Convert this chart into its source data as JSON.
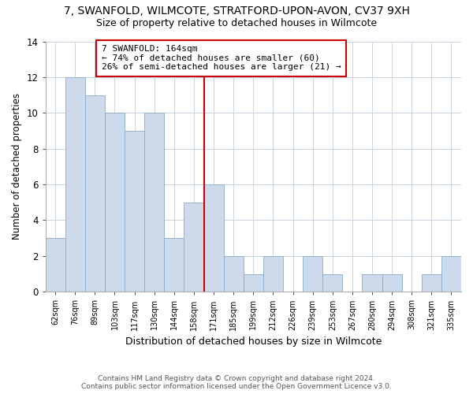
{
  "title": "7, SWANFOLD, WILMCOTE, STRATFORD-UPON-AVON, CV37 9XH",
  "subtitle": "Size of property relative to detached houses in Wilmcote",
  "xlabel": "Distribution of detached houses by size in Wilmcote",
  "ylabel": "Number of detached properties",
  "bar_labels": [
    "62sqm",
    "76sqm",
    "89sqm",
    "103sqm",
    "117sqm",
    "130sqm",
    "144sqm",
    "158sqm",
    "171sqm",
    "185sqm",
    "199sqm",
    "212sqm",
    "226sqm",
    "239sqm",
    "253sqm",
    "267sqm",
    "280sqm",
    "294sqm",
    "308sqm",
    "321sqm",
    "335sqm"
  ],
  "bar_values": [
    3,
    12,
    11,
    10,
    9,
    10,
    3,
    5,
    6,
    2,
    1,
    2,
    0,
    2,
    1,
    0,
    1,
    1,
    0,
    1,
    2
  ],
  "bar_color": "#ccdaeb",
  "bar_edge_color": "#8aaac8",
  "vline_x_index": 7.5,
  "vline_color": "#cc0000",
  "annotation_title": "7 SWANFOLD: 164sqm",
  "annotation_line1": "← 74% of detached houses are smaller (60)",
  "annotation_line2": "26% of semi-detached houses are larger (21) →",
  "annotation_box_color": "#ffffff",
  "annotation_box_edge": "#cc0000",
  "footer_line1": "Contains HM Land Registry data © Crown copyright and database right 2024.",
  "footer_line2": "Contains public sector information licensed under the Open Government Licence v3.0.",
  "ylim": [
    0,
    14
  ],
  "yticks": [
    0,
    2,
    4,
    6,
    8,
    10,
    12,
    14
  ],
  "background_color": "#ffffff",
  "grid_color": "#c8d4e0",
  "title_fontsize": 10,
  "subtitle_fontsize": 9
}
